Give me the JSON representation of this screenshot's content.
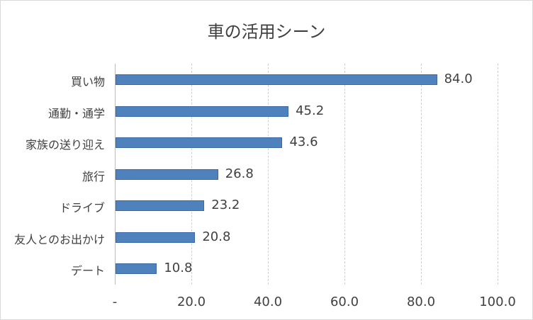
{
  "chart_data": {
    "type": "bar",
    "orientation": "horizontal",
    "title": "車の活用シーン",
    "categories": [
      "買い物",
      "通勤・通学",
      "家族の送り迎え",
      "旅行",
      "ドライブ",
      "友人とのお出かけ",
      "デート"
    ],
    "values": [
      84.0,
      45.2,
      43.6,
      26.8,
      23.2,
      20.8,
      10.8
    ],
    "value_labels": [
      "84.0",
      "45.2",
      "43.6",
      "26.8",
      "23.2",
      "20.8",
      "10.8"
    ],
    "xlabel": "",
    "ylabel": "",
    "xlim": [
      0,
      100
    ],
    "x_ticks": [
      "-",
      "20.0",
      "40.0",
      "60.0",
      "80.0",
      "100.0"
    ],
    "grid": true,
    "legend": null,
    "bar_color": "#4f81bd"
  },
  "title": "車の活用シーン"
}
